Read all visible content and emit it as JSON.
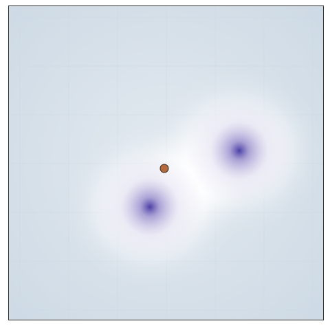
{
  "canvas": {
    "background_edge": "#cdd9e4",
    "background_mid": "#e3eaf0",
    "halo_color": "#ffffff",
    "grid_color": "#c9d6e2"
  },
  "wells": [
    {
      "name": "well-upper-right",
      "core_color": "#4b3fa6",
      "mid_color": "#8f84c8",
      "fade_color": "#d4cfe9"
    },
    {
      "name": "well-lower-left",
      "core_color": "#4b3fa6",
      "mid_color": "#8f84c8",
      "fade_color": "#d4cfe9"
    }
  ],
  "particle": {
    "fill": "#b26a3e",
    "stroke": "#3a2a20"
  }
}
